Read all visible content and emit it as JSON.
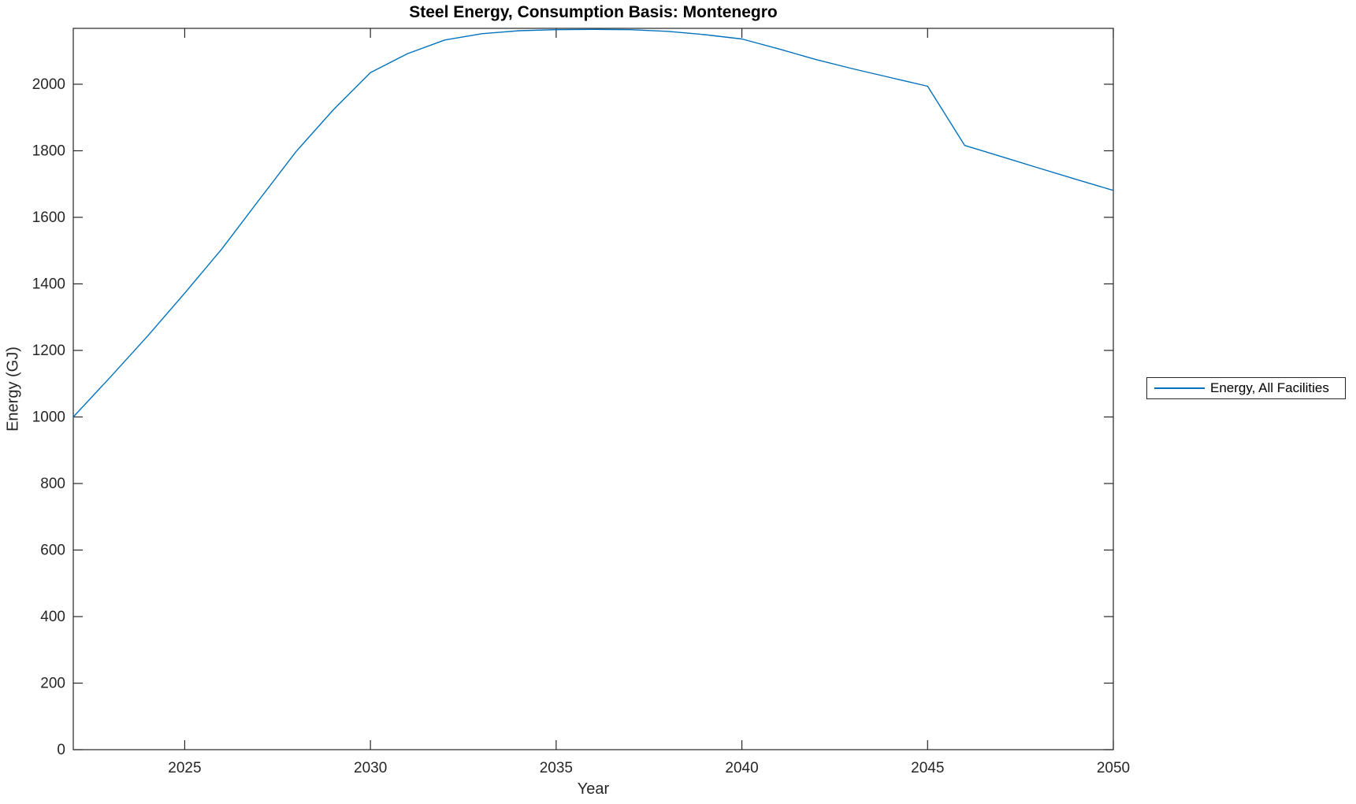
{
  "chart_data": {
    "type": "line",
    "title": "Steel Energy, Consumption Basis: Montenegro",
    "xlabel": "Year",
    "ylabel": "Energy (GJ)",
    "legend_position": "right-outside",
    "grid": false,
    "box": true,
    "tick_direction": "in",
    "xlim": [
      2022,
      2050
    ],
    "ylim": [
      0,
      2168
    ],
    "xticks": [
      2025,
      2030,
      2035,
      2040,
      2045,
      2050
    ],
    "yticks": [
      0,
      200,
      400,
      600,
      800,
      1000,
      1200,
      1400,
      1600,
      1800,
      2000
    ],
    "series": [
      {
        "name": "Energy, All Facilities",
        "color": "#0072BD",
        "x": [
          2022,
          2023,
          2024,
          2025,
          2026,
          2027,
          2028,
          2029,
          2030,
          2031,
          2032,
          2033,
          2034,
          2035,
          2036,
          2037,
          2038,
          2039,
          2040,
          2041,
          2042,
          2043,
          2044,
          2045,
          2046,
          2047,
          2048,
          2049,
          2050
        ],
        "y": [
          1000,
          1120,
          1243,
          1372,
          1505,
          1652,
          1798,
          1923,
          2035,
          2092,
          2133,
          2152,
          2161,
          2164,
          2165,
          2164,
          2159,
          2149,
          2136,
          2106,
          2074,
          2046,
          2020,
          1994,
          1816,
          1782,
          1748,
          1714,
          1681
        ]
      }
    ]
  },
  "colors": {
    "accent": "#0072BD",
    "axis": "#262626",
    "tick_label": "#262626",
    "title_text": "#000000"
  }
}
